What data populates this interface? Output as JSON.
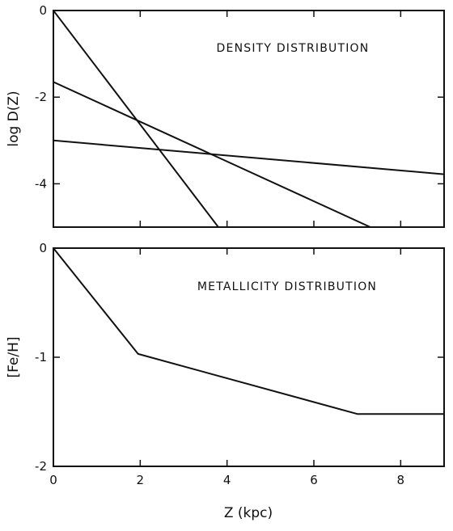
{
  "chart_data": [
    {
      "type": "line",
      "title": "DENSITY DISTRIBUTION",
      "xlabel": "Z (kpc)",
      "ylabel": "log D(Z)",
      "xlim": [
        0,
        9
      ],
      "ylim": [
        -5,
        0
      ],
      "xticks": [
        0,
        2,
        4,
        6,
        8
      ],
      "xtick_labels": [
        "",
        "",
        "",
        "",
        ""
      ],
      "yticks": [
        0,
        -2,
        -4
      ],
      "ytick_labels": [
        "0",
        "-2",
        "-4"
      ],
      "grid": false,
      "legend": "none",
      "series": [
        {
          "x": [
            0,
            3.8
          ],
          "y": [
            0,
            -5
          ]
        },
        {
          "x": [
            0,
            7.3
          ],
          "y": [
            -1.65,
            -5
          ]
        },
        {
          "x": [
            0,
            9
          ],
          "y": [
            -3.0,
            -3.78
          ]
        }
      ]
    },
    {
      "type": "line",
      "title": "METALLICITY DISTRIBUTION",
      "xlabel": "Z (kpc)",
      "ylabel": "[Fe/H]",
      "xlim": [
        0,
        9
      ],
      "ylim": [
        -2,
        0
      ],
      "xticks": [
        0,
        2,
        4,
        6,
        8
      ],
      "xtick_labels": [
        "0",
        "2",
        "4",
        "6",
        "8"
      ],
      "yticks": [
        0,
        -1,
        -2
      ],
      "ytick_labels": [
        "0",
        "-1",
        "-2"
      ],
      "grid": false,
      "legend": "none",
      "series": [
        {
          "x": [
            0,
            1.95,
            7.0,
            9.0
          ],
          "y": [
            0,
            -0.97,
            -1.52,
            -1.52
          ]
        }
      ]
    }
  ]
}
